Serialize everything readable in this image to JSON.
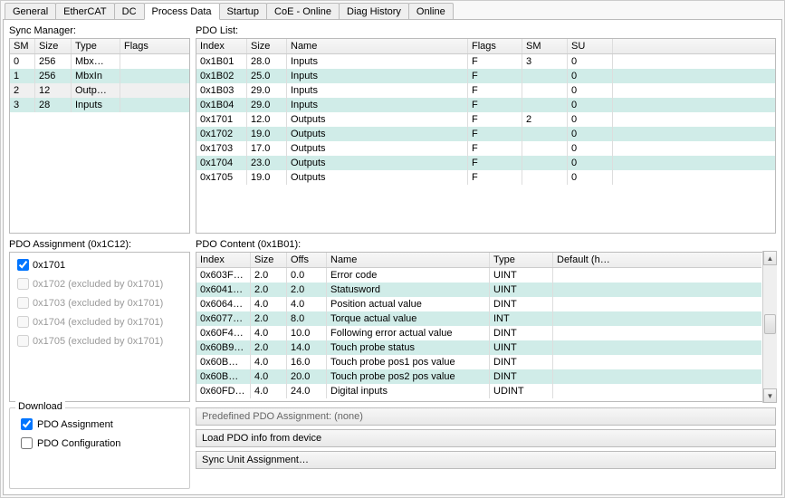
{
  "tabs": [
    "General",
    "EtherCAT",
    "DC",
    "Process Data",
    "Startup",
    "CoE - Online",
    "Diag History",
    "Online"
  ],
  "activeTabIndex": 3,
  "syncManager": {
    "label": "Sync Manager:",
    "columns": [
      "SM",
      "Size",
      "Type",
      "Flags"
    ],
    "rows": [
      {
        "sm": "0",
        "size": "256",
        "type": "Mbx…",
        "flags": "",
        "alt": false
      },
      {
        "sm": "1",
        "size": "256",
        "type": "MbxIn",
        "flags": "",
        "alt": true
      },
      {
        "sm": "2",
        "size": "12",
        "type": "Outp…",
        "flags": "",
        "alt": false,
        "gray": true
      },
      {
        "sm": "3",
        "size": "28",
        "type": "Inputs",
        "flags": "",
        "alt": true
      }
    ]
  },
  "pdoList": {
    "label": "PDO List:",
    "columns": [
      "Index",
      "Size",
      "Name",
      "Flags",
      "SM",
      "SU",
      ""
    ],
    "rows": [
      {
        "index": "0x1B01",
        "size": "28.0",
        "name": "Inputs",
        "flags": "F",
        "sm": "3",
        "su": "0",
        "alt": false
      },
      {
        "index": "0x1B02",
        "size": "25.0",
        "name": "Inputs",
        "flags": "F",
        "sm": "",
        "su": "0",
        "alt": true
      },
      {
        "index": "0x1B03",
        "size": "29.0",
        "name": "Inputs",
        "flags": "F",
        "sm": "",
        "su": "0",
        "alt": false
      },
      {
        "index": "0x1B04",
        "size": "29.0",
        "name": "Inputs",
        "flags": "F",
        "sm": "",
        "su": "0",
        "alt": true
      },
      {
        "index": "0x1701",
        "size": "12.0",
        "name": "Outputs",
        "flags": "F",
        "sm": "2",
        "su": "0",
        "alt": false
      },
      {
        "index": "0x1702",
        "size": "19.0",
        "name": "Outputs",
        "flags": "F",
        "sm": "",
        "su": "0",
        "alt": true
      },
      {
        "index": "0x1703",
        "size": "17.0",
        "name": "Outputs",
        "flags": "F",
        "sm": "",
        "su": "0",
        "alt": false
      },
      {
        "index": "0x1704",
        "size": "23.0",
        "name": "Outputs",
        "flags": "F",
        "sm": "",
        "su": "0",
        "alt": true
      },
      {
        "index": "0x1705",
        "size": "19.0",
        "name": "Outputs",
        "flags": "F",
        "sm": "",
        "su": "0",
        "alt": false
      }
    ]
  },
  "pdoAssignment": {
    "label": "PDO Assignment (0x1C12):",
    "items": [
      {
        "text": "0x1701",
        "checked": true,
        "enabled": true
      },
      {
        "text": "0x1702 (excluded by 0x1701)",
        "checked": false,
        "enabled": false
      },
      {
        "text": "0x1703 (excluded by 0x1701)",
        "checked": false,
        "enabled": false
      },
      {
        "text": "0x1704 (excluded by 0x1701)",
        "checked": false,
        "enabled": false
      },
      {
        "text": "0x1705 (excluded by 0x1701)",
        "checked": false,
        "enabled": false
      }
    ]
  },
  "pdoContent": {
    "label": "PDO Content (0x1B01):",
    "columns": [
      "Index",
      "Size",
      "Offs",
      "Name",
      "Type",
      "Default (h…"
    ],
    "rows": [
      {
        "index": "0x603F…",
        "size": "2.0",
        "offs": "0.0",
        "name": "Error code",
        "type": "UINT",
        "def": "",
        "alt": false
      },
      {
        "index": "0x6041…",
        "size": "2.0",
        "offs": "2.0",
        "name": "Statusword",
        "type": "UINT",
        "def": "",
        "alt": true
      },
      {
        "index": "0x6064…",
        "size": "4.0",
        "offs": "4.0",
        "name": "Position actual value",
        "type": "DINT",
        "def": "",
        "alt": false
      },
      {
        "index": "0x6077…",
        "size": "2.0",
        "offs": "8.0",
        "name": "Torque actual value",
        "type": "INT",
        "def": "",
        "alt": true
      },
      {
        "index": "0x60F4…",
        "size": "4.0",
        "offs": "10.0",
        "name": "Following error actual value",
        "type": "DINT",
        "def": "",
        "alt": false
      },
      {
        "index": "0x60B9…",
        "size": "2.0",
        "offs": "14.0",
        "name": "Touch probe status",
        "type": "UINT",
        "def": "",
        "alt": true
      },
      {
        "index": "0x60B…",
        "size": "4.0",
        "offs": "16.0",
        "name": "Touch probe pos1 pos value",
        "type": "DINT",
        "def": "",
        "alt": false
      },
      {
        "index": "0x60B…",
        "size": "4.0",
        "offs": "20.0",
        "name": "Touch probe pos2 pos value",
        "type": "DINT",
        "def": "",
        "alt": true
      },
      {
        "index": "0x60FD…",
        "size": "4.0",
        "offs": "24.0",
        "name": "Digital inputs",
        "type": "UDINT",
        "def": "",
        "alt": false
      }
    ]
  },
  "download": {
    "label": "Download",
    "pdoAssignmentLabel": "PDO Assignment",
    "pdoAssignmentChecked": true,
    "pdoConfigLabel": "PDO Configuration",
    "pdoConfigChecked": false
  },
  "buttons": {
    "predefined": "Predefined PDO Assignment: (none)",
    "loadPdo": "Load PDO info from device",
    "syncUnit": "Sync Unit Assignment…"
  },
  "colors": {
    "altTeal": "#d0ece8",
    "border": "#bbbbbb",
    "disabledText": "#9a9a9a"
  }
}
